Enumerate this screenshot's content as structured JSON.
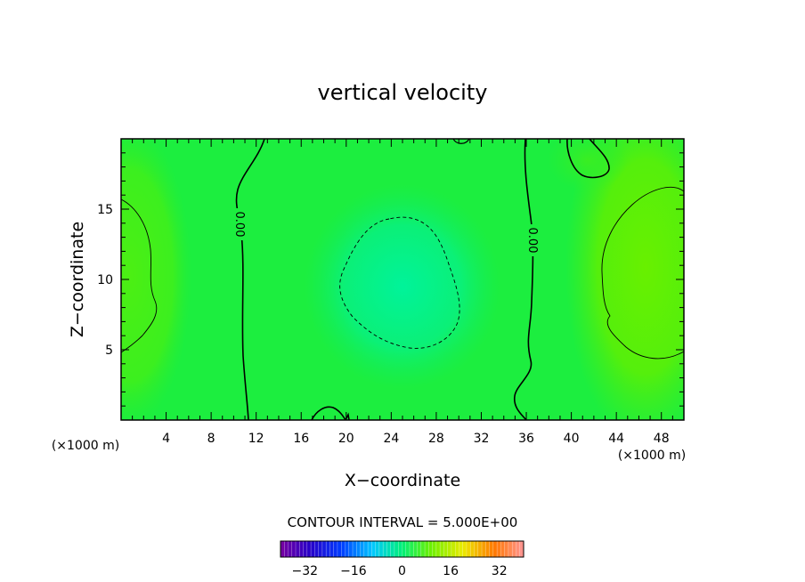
{
  "chart_data": {
    "type": "heatmap",
    "title": "vertical velocity",
    "xlabel": "X−coordinate",
    "ylabel": "Z−coordinate",
    "x_unit": "(×1000 m)",
    "y_unit": "(×1000 m)",
    "xlim": [
      0,
      50
    ],
    "ylim": [
      0,
      20
    ],
    "x_ticks": [
      "4",
      "8",
      "12",
      "16",
      "20",
      "24",
      "28",
      "32",
      "36",
      "40",
      "44",
      "48"
    ],
    "y_ticks": [
      "5",
      "10",
      "15"
    ],
    "x_tick_values": [
      4,
      8,
      12,
      16,
      20,
      24,
      28,
      32,
      36,
      40,
      44,
      48
    ],
    "y_tick_values": [
      5,
      10,
      15
    ],
    "contour_interval_text": "CONTOUR INTERVAL = 5.000E+00",
    "contour_interval": 5.0,
    "colorbar": {
      "range": [
        -40,
        40
      ],
      "ticks": [
        "−32",
        "−16",
        "0",
        "16",
        "32"
      ],
      "tick_values": [
        -32,
        -16,
        0,
        16,
        32
      ]
    },
    "contour_labels": [
      "0.00",
      "0.00"
    ],
    "grid": false
  }
}
